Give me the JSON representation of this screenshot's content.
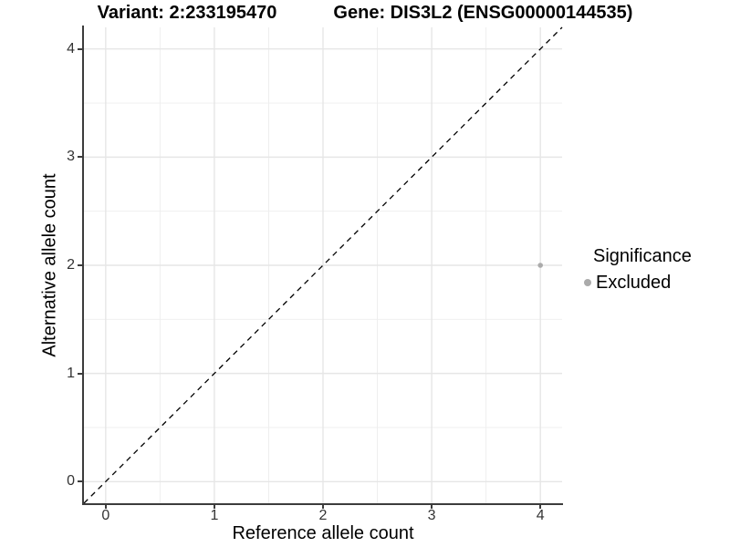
{
  "header": {
    "variant_title": "Variant: 2:233195470",
    "gene_title": "Gene: DIS3L2 (ENSG00000144535)"
  },
  "legend": {
    "title": "Significance",
    "items": [
      {
        "label": "Excluded",
        "color": "#ababab"
      }
    ]
  },
  "chart_data": {
    "type": "scatter",
    "title": "Variant: 2:233195470   Gene: DIS3L2 (ENSG00000144535)",
    "xlabel": "Reference allele count",
    "ylabel": "Alternative allele count",
    "xlim": [
      -0.2,
      4.2
    ],
    "ylim": [
      -0.2,
      4.2
    ],
    "xticks": [
      0,
      1,
      2,
      3,
      4
    ],
    "yticks": [
      0,
      1,
      2,
      3,
      4
    ],
    "minor_grid_step": 0.5,
    "grid": "major+minor",
    "legend_position": "right",
    "series": [
      {
        "name": "Excluded",
        "color": "#ababab",
        "points": [
          {
            "x": 4,
            "y": 2
          }
        ]
      }
    ],
    "reference_line": {
      "type": "identity y=x",
      "style": "dashed",
      "color": "#000000"
    }
  },
  "colors": {
    "background": "#ffffff",
    "grid_major": "#e6e6e6",
    "grid_minor": "#ededed",
    "axis_line": "#3c3c3c",
    "tick_label": "#333333",
    "title": "#000000",
    "point": "#ababab",
    "identity_line": "#000000"
  }
}
